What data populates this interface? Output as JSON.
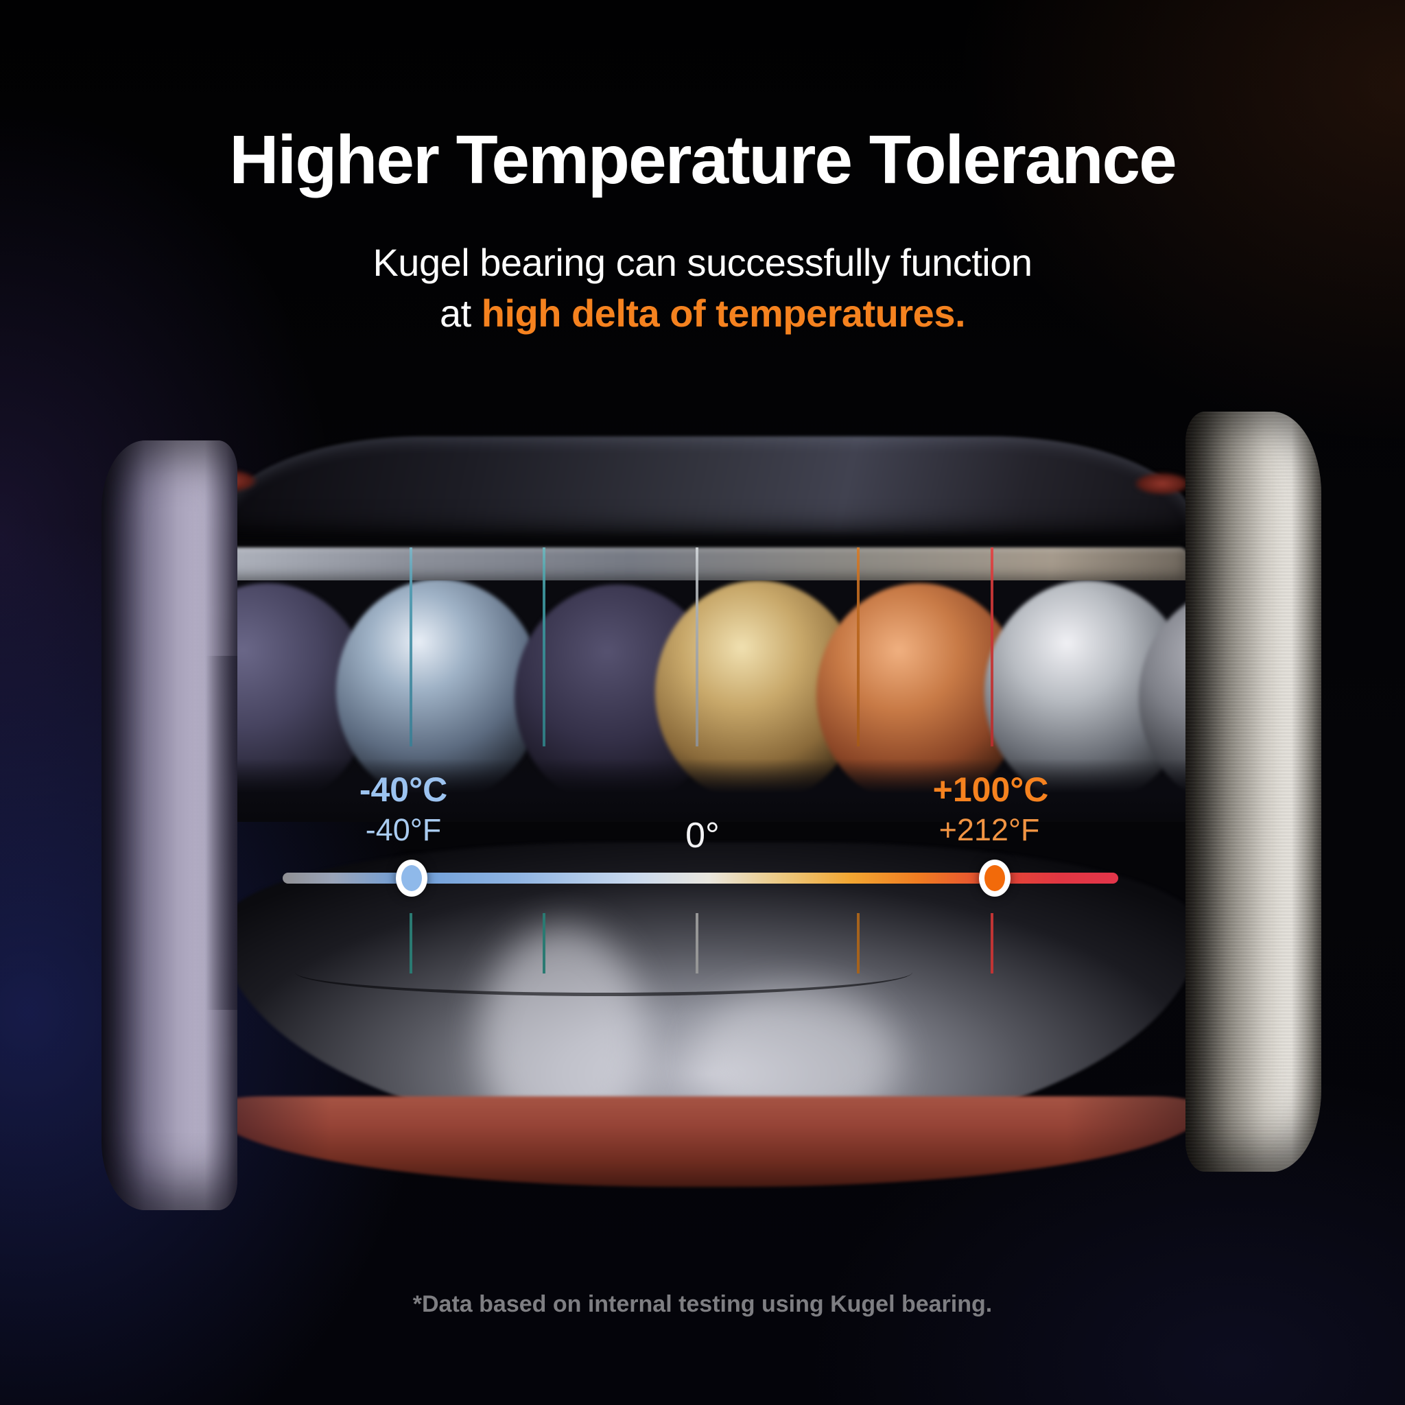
{
  "header": {
    "title": "Higher Temperature Tolerance",
    "subtitle_line1": "Kugel bearing can successfully function",
    "subtitle_line2_prefix": "at ",
    "subtitle_line2_highlight": "high delta of temperatures."
  },
  "temperature_scale": {
    "cold": {
      "celsius": "-40°C",
      "fahrenheit": "-40°F"
    },
    "center": {
      "label": "0°"
    },
    "hot": {
      "celsius": "+100°C",
      "fahrenheit": "+212°F"
    },
    "handles": [
      {
        "name": "cold-handle",
        "value_celsius": -40
      },
      {
        "name": "hot-handle",
        "value_celsius": 100
      }
    ]
  },
  "footnote": "*Data based on internal testing using Kugel bearing.",
  "colors": {
    "title_white": "#FFFFFF",
    "accent_orange": "#F5821F",
    "cold_blue_bold": "#9CC3F0",
    "cold_blue_light": "#A9CBF0",
    "zero_white": "#F3F3F5",
    "hot_orange_bold": "#F5821F",
    "hot_orange_light": "#F19443",
    "footnote_gray": "#7E7E82",
    "handle_cold_fill": "#8FB9EA",
    "handle_hot_fill": "#F26A0A",
    "handle_ring": "#FFFFFF",
    "track_red": "#E3354A",
    "tick_teal_1": "#4E9AB0",
    "tick_teal_2": "#3E98A0",
    "tick_gray": "#AEB2B6",
    "tick_orange": "#C06A20",
    "tick_red": "#D03838",
    "seal_brown": "#8A3A2C"
  }
}
